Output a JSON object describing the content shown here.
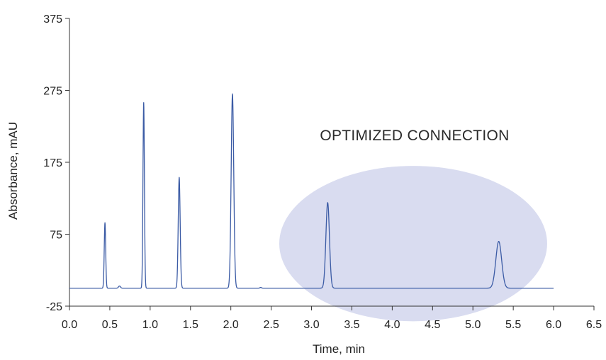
{
  "chart_data": {
    "type": "line",
    "title": "",
    "xlabel": "Time, min",
    "ylabel": "Absorbance, mAU",
    "xlim": [
      0.0,
      6.5
    ],
    "ylim": [
      -25,
      375
    ],
    "xticks": [
      "0.0",
      "0.5",
      "1.0",
      "1.5",
      "2.0",
      "2.5",
      "3.0",
      "3.5",
      "4.0",
      "4.5",
      "5.0",
      "5.5",
      "6.0",
      "6.5"
    ],
    "yticks": [
      "-25",
      "75",
      "175",
      "275",
      "375"
    ],
    "grid": false,
    "legend": "none",
    "baseline": 0,
    "x_end": 6.0,
    "series": [
      {
        "color": "#3b5ba5",
        "peaks": [
          {
            "t": 0.44,
            "height": 91,
            "width": 0.009
          },
          {
            "t": 0.62,
            "height": 3,
            "width": 0.012
          },
          {
            "t": 0.92,
            "height": 258,
            "width": 0.009
          },
          {
            "t": 1.36,
            "height": 154,
            "width": 0.012
          },
          {
            "t": 2.02,
            "height": 270,
            "width": 0.016
          },
          {
            "t": 2.37,
            "height": 1,
            "width": 0.01
          },
          {
            "t": 3.2,
            "height": 119,
            "width": 0.022
          },
          {
            "t": 5.32,
            "height": 65,
            "width": 0.036
          }
        ]
      }
    ],
    "annotation": {
      "text": "OPTIMIZED CONNECTION",
      "highlight": {
        "cx": 4.26,
        "cy": 62,
        "rx": 1.66,
        "ry": 108,
        "color": "#d9dcf0"
      }
    }
  }
}
